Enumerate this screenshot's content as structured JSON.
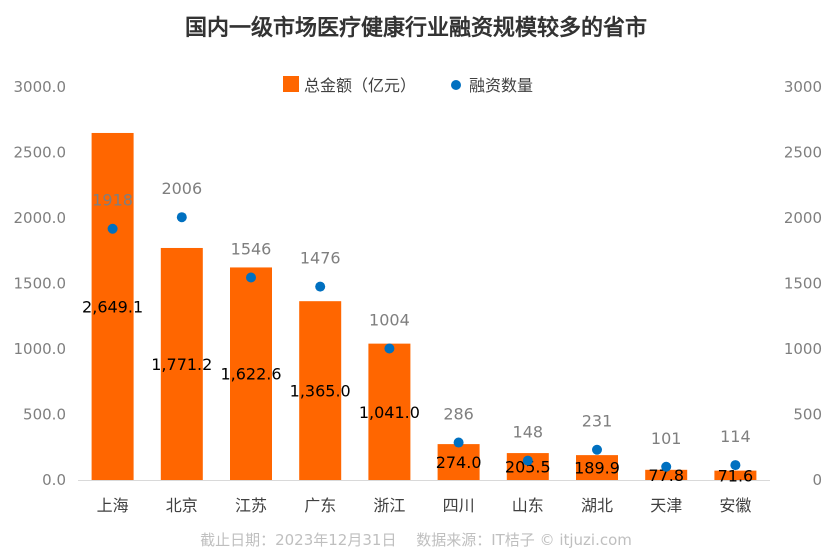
{
  "chart_data": {
    "type": "bar",
    "title": "国内一级市场医疗健康行业融资规模较多的省市",
    "categories": [
      "上海",
      "北京",
      "江苏",
      "广东",
      "浙江",
      "四川",
      "山东",
      "湖北",
      "天津",
      "安徽"
    ],
    "series": [
      {
        "name": "总金额（亿元）",
        "type": "bar",
        "axis": "left",
        "color": "#ff6600",
        "values": [
          2649.1,
          1771.2,
          1622.6,
          1365.0,
          1041.0,
          274.0,
          205.5,
          189.9,
          77.8,
          71.6
        ],
        "labels": [
          "2,649.1",
          "1,771.2",
          "1,622.6",
          "1,365.0",
          "1,041.0",
          "274.0",
          "205.5",
          "189.9",
          "77.8",
          "71.6"
        ]
      },
      {
        "name": "融资数量",
        "type": "scatter",
        "axis": "right",
        "color": "#0070c0",
        "values": [
          1918,
          2006,
          1546,
          1476,
          1004,
          286,
          148,
          231,
          101,
          114
        ],
        "labels": [
          "1918",
          "2006",
          "1546",
          "1476",
          "1004",
          "286",
          "148",
          "231",
          "101",
          "114"
        ]
      }
    ],
    "y_left": {
      "ylim": [
        0,
        3000
      ],
      "ticks": [
        0,
        500,
        1000,
        1500,
        2000,
        2500,
        3000
      ],
      "tick_labels": [
        "0.0",
        "500.0",
        "1000.0",
        "1500.0",
        "2000.0",
        "2500.0",
        "3000.0"
      ]
    },
    "y_right": {
      "ylim": [
        0,
        3000
      ],
      "ticks": [
        0,
        500,
        1000,
        1500,
        2000,
        2500,
        3000
      ],
      "tick_labels": [
        "0",
        "500",
        "1000",
        "1500",
        "2000",
        "2500",
        "3000"
      ]
    },
    "legend": "top-center",
    "grid": false
  },
  "footer": "截止日期：2023年12月31日　 数据来源：IT桔子 © itjuzi.com"
}
